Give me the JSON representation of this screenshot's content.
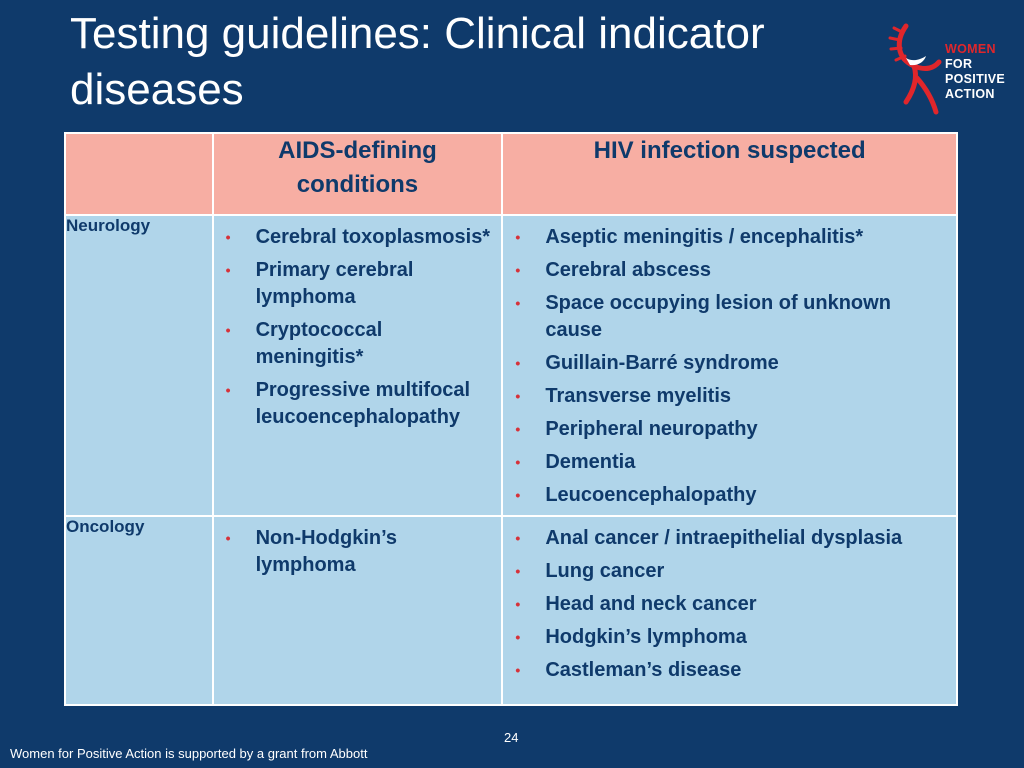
{
  "slide": {
    "title": "Testing guidelines: Clinical indicator diseases",
    "page_number": "24",
    "footer": "Women for Positive Action is supported by a grant from Abbott"
  },
  "logo": {
    "line1": "WOMEN",
    "line2": "FOR",
    "line3": "POSITIVE",
    "line4": "ACTION",
    "accent_color": "#e0262b"
  },
  "colors": {
    "background": "#0f3a6b",
    "header_fill": "#f7aea3",
    "body_fill": "#b0d5ea",
    "bullet": "#d6323a"
  },
  "table": {
    "headers": [
      "",
      "AIDS-defining conditions",
      "HIV infection suspected"
    ],
    "rows": [
      {
        "label": "Neurology",
        "aids": [
          "Cerebral toxoplasmosis*",
          "Primary cerebral lymphoma",
          "Cryptococcal meningitis*",
          "Progressive multifocal leucoencephalopathy"
        ],
        "hiv": [
          "Aseptic meningitis / encephalitis*",
          "Cerebral abscess",
          "Space occupying lesion of unknown cause",
          "Guillain-Barré syndrome",
          "Transverse myelitis",
          "Peripheral neuropathy",
          "Dementia",
          "Leucoencephalopathy"
        ]
      },
      {
        "label": "Oncology",
        "aids": [
          "Non-Hodgkin’s lymphoma"
        ],
        "hiv": [
          "Anal cancer / intraepithelial dysplasia",
          "Lung cancer",
          "Head and neck cancer",
          "Hodgkin’s lymphoma",
          "Castleman’s disease"
        ]
      }
    ]
  }
}
